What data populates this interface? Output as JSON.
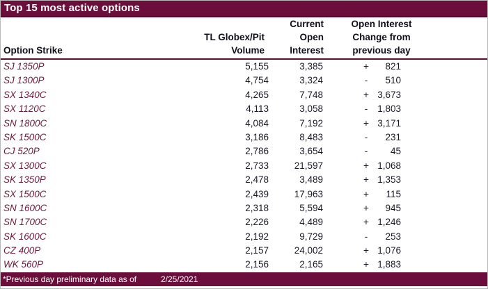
{
  "title": "Top 15 most active options",
  "columns": {
    "strike": "Option Strike",
    "volume_line1": "TL Globex/Pit",
    "volume_line2": "Volume",
    "oi_line1": "Current",
    "oi_line2": "Open",
    "oi_line3": "Interest",
    "change_line1": "Open Interest",
    "change_line2": "Change from",
    "change_line3": "previous day"
  },
  "rows": [
    {
      "strike": "SJ 1350P",
      "volume": "5,155",
      "open_interest": "3,385",
      "change_sign": "+",
      "change_value": "821"
    },
    {
      "strike": "SJ 1300P",
      "volume": "4,754",
      "open_interest": "3,324",
      "change_sign": "-",
      "change_value": "510"
    },
    {
      "strike": "SX 1340C",
      "volume": "4,265",
      "open_interest": "7,748",
      "change_sign": "+",
      "change_value": "3,673"
    },
    {
      "strike": "SX 1120C",
      "volume": "4,113",
      "open_interest": "3,058",
      "change_sign": "-",
      "change_value": "1,803"
    },
    {
      "strike": "SN 1800C",
      "volume": "4,084",
      "open_interest": "7,192",
      "change_sign": "+",
      "change_value": "3,171"
    },
    {
      "strike": "SK 1500C",
      "volume": "3,186",
      "open_interest": "8,483",
      "change_sign": "-",
      "change_value": "231"
    },
    {
      "strike": "CJ 520P",
      "volume": "2,786",
      "open_interest": "3,654",
      "change_sign": "-",
      "change_value": "45"
    },
    {
      "strike": "SX 1300C",
      "volume": "2,733",
      "open_interest": "21,597",
      "change_sign": "+",
      "change_value": "1,068"
    },
    {
      "strike": "SK 1350P",
      "volume": "2,478",
      "open_interest": "3,489",
      "change_sign": "+",
      "change_value": "1,353"
    },
    {
      "strike": "SX 1500C",
      "volume": "2,439",
      "open_interest": "17,963",
      "change_sign": "+",
      "change_value": "115"
    },
    {
      "strike": "SN 1600C",
      "volume": "2,318",
      "open_interest": "5,594",
      "change_sign": "+",
      "change_value": "945"
    },
    {
      "strike": "SN 1700C",
      "volume": "2,226",
      "open_interest": "4,489",
      "change_sign": "+",
      "change_value": "1,246"
    },
    {
      "strike": "SK 1600C",
      "volume": "2,192",
      "open_interest": "9,729",
      "change_sign": "-",
      "change_value": "253"
    },
    {
      "strike": "CZ 400P",
      "volume": "2,157",
      "open_interest": "24,002",
      "change_sign": "+",
      "change_value": "1,076"
    },
    {
      "strike": "WK 560P",
      "volume": "2,156",
      "open_interest": "2,165",
      "change_sign": "+",
      "change_value": "1,883"
    }
  ],
  "footer": {
    "note": "*Previous day preliminary data as of",
    "date": "2/25/2021"
  },
  "colors": {
    "maroon_bar": "#6c0e3c",
    "header_rule": "#5d0c33",
    "strike_text": "#6d1a3d",
    "number_text": "#1a1a28"
  }
}
